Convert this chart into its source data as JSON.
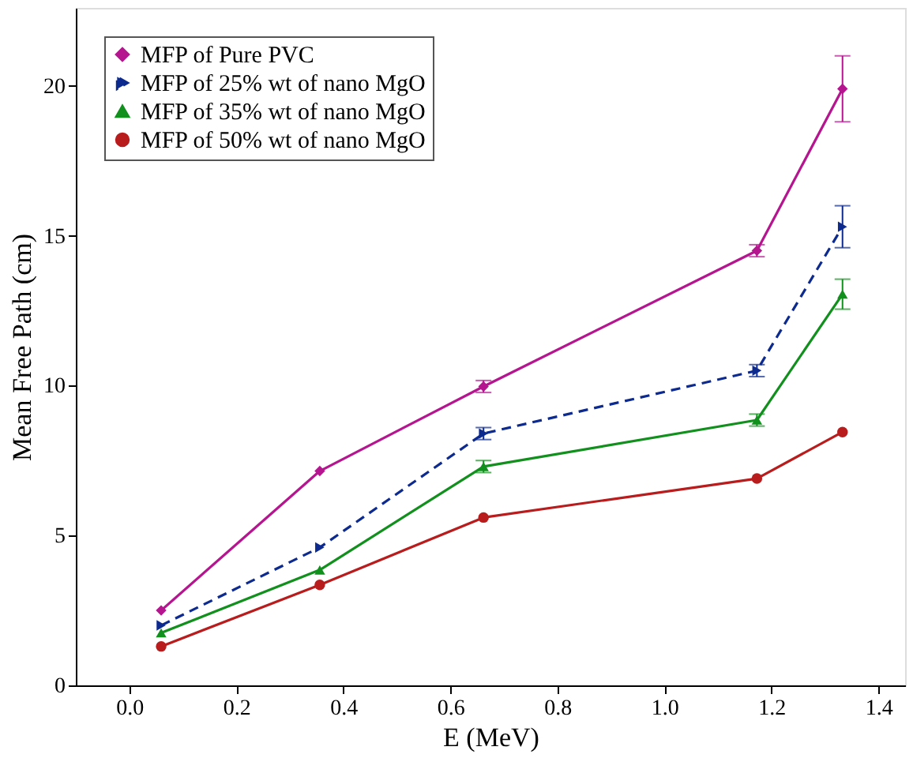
{
  "chart_data": {
    "type": "line",
    "xlabel": "E (MeV)",
    "ylabel": "Mean Free Path (cm)",
    "x": [
      0.0595,
      0.356,
      0.662,
      1.173,
      1.333
    ],
    "xlim": [
      -0.1,
      1.45
    ],
    "xticks": [
      {
        "value": 0,
        "label": "0.0"
      },
      0.2,
      0.4,
      0.6,
      0.8,
      {
        "value": 1,
        "label": "1.0"
      },
      1.2,
      1.4
    ],
    "ylim": [
      0,
      22.6
    ],
    "yticks": [
      0,
      5,
      10,
      15,
      20
    ],
    "grid": false,
    "legend": "top left",
    "series": [
      {
        "name": "MFP of Pure PVC",
        "color": "#b5158f",
        "marker": "diamond",
        "line_style": "solid",
        "values": [
          2.5,
          7.15,
          9.97,
          14.5,
          19.9
        ],
        "errors": [
          null,
          null,
          0.2,
          0.2,
          1.1
        ]
      },
      {
        "name": "MFP of 25% wt of nano MgO",
        "color": "#0d2a8f",
        "marker": "triangle-right",
        "line_style": "dashed",
        "values": [
          2.0,
          4.6,
          8.4,
          10.5,
          15.3
        ],
        "errors": [
          null,
          null,
          0.2,
          0.2,
          0.7
        ]
      },
      {
        "name": "MFP of 35% wt of nano MgO",
        "color": "#12901e",
        "marker": "triangle",
        "line_style": "solid",
        "values": [
          1.75,
          3.85,
          7.3,
          8.85,
          13.05
        ],
        "errors": [
          null,
          null,
          0.2,
          0.2,
          0.5
        ]
      },
      {
        "name": "MFP of 50% wt of nano MgO",
        "color": "#b81c1c",
        "marker": "circle",
        "line_style": "solid",
        "values": [
          1.3,
          3.35,
          5.6,
          6.9,
          8.45
        ],
        "errors": [
          null,
          null,
          null,
          null,
          null
        ]
      }
    ]
  }
}
